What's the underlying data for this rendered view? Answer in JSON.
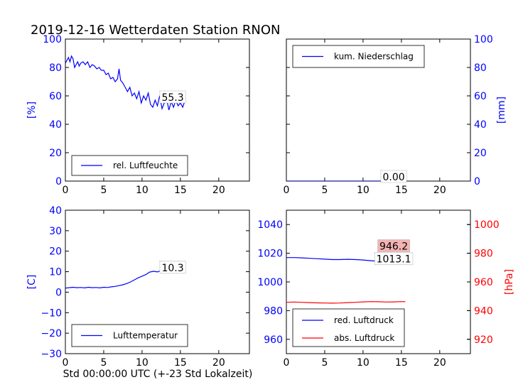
{
  "figure": {
    "title": "2019-12-16 Wetterdaten Station RNON"
  },
  "chart_data": [
    {
      "type": "line",
      "panel": "top-left",
      "ylabel": "[%]",
      "ylabel_color": "#0000ff",
      "xlim": [
        0,
        24
      ],
      "xticks": [
        0,
        5,
        10,
        15,
        20
      ],
      "ylim": [
        0,
        100
      ],
      "yticks": [
        0,
        20,
        40,
        60,
        80,
        100
      ],
      "tick_color": "#0000ff",
      "legend_position": "lower-left",
      "annotation": {
        "text": "55.3",
        "x": 14,
        "y": 59,
        "box": "#ffffff"
      },
      "series": [
        {
          "name": "rel. Luftfeuchte",
          "color": "#0000ff",
          "x": [
            0,
            0.2,
            0.4,
            0.6,
            0.8,
            1.0,
            1.2,
            1.4,
            1.6,
            1.8,
            2.0,
            2.3,
            2.6,
            2.9,
            3.2,
            3.5,
            3.8,
            4.1,
            4.4,
            4.7,
            5.0,
            5.3,
            5.6,
            5.9,
            6.2,
            6.5,
            6.8,
            7.0,
            7.2,
            7.5,
            7.8,
            8.1,
            8.4,
            8.7,
            9.0,
            9.3,
            9.6,
            9.9,
            10.2,
            10.5,
            10.8,
            11.1,
            11.4,
            11.7,
            12.0,
            12.3,
            12.6,
            12.9,
            13.2,
            13.5,
            13.8,
            14.1,
            14.4,
            14.7,
            15.0,
            15.3,
            15.5
          ],
          "y": [
            83,
            85,
            87,
            84,
            88,
            86,
            80,
            82,
            84,
            81,
            83,
            84,
            82,
            84,
            80,
            82,
            81,
            79,
            80,
            78,
            78,
            75,
            76,
            72,
            73,
            70,
            72,
            79,
            71,
            69,
            66,
            63,
            66,
            60,
            62,
            58,
            63,
            55,
            60,
            57,
            62,
            54,
            52,
            57,
            53,
            60,
            51,
            55,
            58,
            50,
            56,
            52,
            57,
            53,
            55,
            52,
            55.3
          ]
        }
      ]
    },
    {
      "type": "line",
      "panel": "top-right",
      "ylabel": "[mm]",
      "ylabel_color": "#0000ff",
      "xlim": [
        0,
        24
      ],
      "xticks": [
        0,
        5,
        10,
        15,
        20
      ],
      "ylim": [
        0,
        100
      ],
      "yticks": [
        0,
        20,
        40,
        60,
        80,
        100
      ],
      "y_axis_side": "right",
      "tick_color": "#0000ff",
      "legend_position": "upper-left",
      "annotation": {
        "text": "0.00",
        "x": 14,
        "y": 3,
        "box": "#ffffff"
      },
      "series": [
        {
          "name": "kum. Niederschlag",
          "color": "#0000ff",
          "x": [
            0,
            15.5
          ],
          "y": [
            0,
            0
          ]
        }
      ]
    },
    {
      "type": "line",
      "panel": "bottom-left",
      "ylabel": "[C]",
      "ylabel_color": "#0000ff",
      "xlabel": "Std 00:00:00 UTC (+-23 Std Lokalzeit)",
      "xlim": [
        0,
        24
      ],
      "xticks": [
        0,
        5,
        10,
        15,
        20
      ],
      "ylim": [
        -30,
        40
      ],
      "yticks": [
        -30,
        -20,
        -10,
        0,
        10,
        20,
        30,
        40
      ],
      "tick_color": "#0000ff",
      "legend_position": "lower-left",
      "annotation": {
        "text": "10.3",
        "x": 14,
        "y": 12,
        "box": "#ffffff"
      },
      "series": [
        {
          "name": "Lufttemperatur",
          "color": "#0000ff",
          "x": [
            0,
            0.5,
            1,
            1.5,
            2,
            2.5,
            3,
            3.5,
            4,
            4.5,
            5,
            5.5,
            6,
            6.5,
            7,
            7.5,
            8,
            8.5,
            9,
            9.5,
            10,
            10.5,
            11,
            11.5,
            12,
            12.5,
            13,
            13.5,
            14,
            14.5,
            15,
            15.5
          ],
          "y": [
            2.0,
            2.2,
            2.4,
            2.2,
            2.3,
            2.1,
            2.4,
            2.2,
            2.3,
            2.1,
            2.4,
            2.3,
            2.6,
            2.8,
            3.2,
            3.6,
            4.2,
            5.0,
            6.0,
            7.0,
            7.8,
            8.6,
            9.8,
            10.2,
            9.9,
            10.5,
            11.2,
            10.6,
            10.9,
            10.5,
            10.4,
            10.3
          ]
        }
      ]
    },
    {
      "type": "line",
      "panel": "bottom-right",
      "xlim": [
        0,
        24
      ],
      "xticks": [
        0,
        5,
        10,
        15,
        20
      ],
      "ylim": [
        950,
        1050
      ],
      "yticks": [
        960,
        980,
        1000,
        1020,
        1040
      ],
      "tick_color": "#0000ff",
      "y2label": "[hPa]",
      "y2label_color": "#ff0000",
      "y2lim": [
        910,
        1010
      ],
      "y2ticks": [
        920,
        940,
        960,
        980,
        1000
      ],
      "y2_tick_color": "#ff0000",
      "legend_position": "lower-left",
      "annotations": [
        {
          "text": "1013.1",
          "x": 14,
          "y": 1016,
          "box": "#ffffff"
        },
        {
          "text": "946.2",
          "x": 14,
          "y": 985,
          "box": "#f4b3b3"
        }
      ],
      "series": [
        {
          "name": "red. Luftdruck",
          "color": "#0000ff",
          "axis": "left",
          "x": [
            0,
            1,
            2,
            3,
            4,
            5,
            6,
            7,
            8,
            9,
            10,
            11,
            12,
            13,
            14,
            15,
            15.5
          ],
          "y": [
            1017,
            1017,
            1016.8,
            1016.5,
            1016.2,
            1015.9,
            1015.6,
            1015.6,
            1015.8,
            1015.6,
            1015.3,
            1014.8,
            1014.4,
            1014.0,
            1013.6,
            1013.3,
            1013.1
          ]
        },
        {
          "name": "abs. Luftdruck",
          "color": "#ff0000",
          "axis": "right",
          "x": [
            0,
            1,
            2,
            3,
            4,
            5,
            6,
            7,
            8,
            9,
            10,
            11,
            12,
            13,
            14,
            15,
            15.5
          ],
          "y": [
            945.8,
            946.0,
            945.8,
            945.6,
            945.4,
            945.3,
            945.2,
            945.3,
            945.6,
            945.8,
            946.1,
            946.3,
            946.2,
            946.0,
            946.1,
            946.3,
            946.2
          ]
        }
      ]
    }
  ]
}
